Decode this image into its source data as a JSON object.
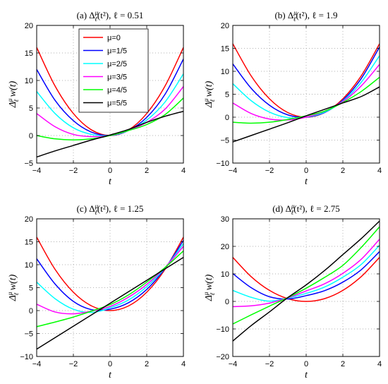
{
  "colors": {
    "mu0": "#ff0000",
    "mu1": "#0000ff",
    "mu2": "#00ffff",
    "mu3": "#ff00ff",
    "mu4": "#00ff00",
    "mu5": "#000000"
  },
  "legend": {
    "placement": "top-left",
    "entries": [
      "μ=0",
      "μ=1/5",
      "μ=2/5",
      "μ=3/5",
      "μ=4/5",
      "μ=5/5"
    ]
  },
  "chart_data": [
    {
      "type": "line",
      "title": "(a) Δ_ℓ^μ(t²), ℓ = 0.51",
      "xlabel": "t",
      "ylabel": "Δ_ℓ^μ w(t)",
      "xlim": [
        -4,
        4
      ],
      "ylim": [
        -5,
        20
      ],
      "xticks": [
        -4,
        -2,
        0,
        2,
        4
      ],
      "yticks": [
        -5,
        0,
        5,
        10,
        15,
        20
      ],
      "grid": true,
      "ell": 0.51,
      "x": [
        -4,
        -3,
        -2,
        -1,
        0,
        1,
        2,
        3,
        4
      ],
      "series": [
        {
          "name": "μ=0",
          "values": [
            16.0,
            9.0,
            4.0,
            1.0,
            0.0,
            1.0,
            4.0,
            9.0,
            16.0
          ]
        },
        {
          "name": "μ=1/5",
          "values": [
            12.0,
            6.4,
            2.7,
            0.6,
            0.0,
            0.9,
            3.3,
            7.5,
            13.9
          ]
        },
        {
          "name": "μ=2/5",
          "values": [
            8.0,
            4.0,
            1.4,
            0.2,
            0.0,
            0.9,
            2.8,
            6.1,
            11.2
          ]
        },
        {
          "name": "μ=3/5",
          "values": [
            4.0,
            1.6,
            0.2,
            -0.2,
            0.0,
            0.9,
            2.4,
            4.8,
            8.9
          ]
        },
        {
          "name": "μ=4/5",
          "values": [
            0.0,
            -0.6,
            -0.8,
            -0.6,
            0.0,
            0.9,
            2.0,
            3.8,
            6.8
          ]
        },
        {
          "name": "μ=5/5",
          "values": [
            -3.9,
            -2.8,
            -1.8,
            -0.8,
            0.1,
            1.1,
            2.4,
            3.5,
            4.4
          ]
        }
      ]
    },
    {
      "type": "line",
      "title": "(b) Δ_ℓ^μ(t²), ℓ = 1.9",
      "xlabel": "t",
      "ylabel": "Δ_ℓ^μ w(t)",
      "xlim": [
        -4,
        4
      ],
      "ylim": [
        -10,
        20
      ],
      "xticks": [
        -4,
        -2,
        0,
        2,
        4
      ],
      "yticks": [
        -10,
        -5,
        0,
        5,
        10,
        15,
        20
      ],
      "grid": true,
      "ell": 1.9,
      "x": [
        -4,
        -3,
        -2,
        -1,
        0,
        1,
        2,
        3,
        4
      ],
      "series": [
        {
          "name": "μ=0",
          "values": [
            16.0,
            9.0,
            4.0,
            1.0,
            0.0,
            1.0,
            4.0,
            9.0,
            16.0
          ]
        },
        {
          "name": "μ=1/5",
          "values": [
            11.6,
            6.3,
            2.6,
            0.5,
            0.0,
            1.0,
            3.7,
            8.4,
            15.3
          ]
        },
        {
          "name": "μ=2/5",
          "values": [
            7.3,
            3.6,
            1.1,
            -0.1,
            0.0,
            1.1,
            3.5,
            7.6,
            13.4
          ]
        },
        {
          "name": "μ=3/5",
          "values": [
            3.1,
            0.8,
            -0.4,
            -0.6,
            0.0,
            1.3,
            3.4,
            6.8,
            11.5
          ]
        },
        {
          "name": "μ=4/5",
          "values": [
            -1.1,
            -1.3,
            -1.1,
            -0.5,
            0.3,
            1.3,
            3.2,
            5.6,
            8.7
          ]
        },
        {
          "name": "μ=5/5",
          "values": [
            -5.4,
            -4.0,
            -2.6,
            -1.2,
            0.3,
            1.7,
            3.1,
            4.5,
            6.6
          ]
        }
      ]
    },
    {
      "type": "line",
      "title": "(c) Δ_ℓ^μ(t²), ℓ = 1.25",
      "xlabel": "t",
      "ylabel": "Δ_ℓ^μ w(t)",
      "xlim": [
        -4,
        4
      ],
      "ylim": [
        -10,
        20
      ],
      "xticks": [
        -4,
        -2,
        0,
        2,
        4
      ],
      "yticks": [
        -10,
        -5,
        0,
        5,
        10,
        15,
        20
      ],
      "grid": true,
      "ell": 1.25,
      "x": [
        -4,
        -3,
        -2,
        -1,
        0,
        1,
        2,
        3,
        4
      ],
      "series": [
        {
          "name": "μ=0",
          "values": [
            16.0,
            9.0,
            4.0,
            1.0,
            0.0,
            1.0,
            4.0,
            9.0,
            16.0
          ]
        },
        {
          "name": "μ=1/5",
          "values": [
            11.3,
            5.8,
            2.0,
            0.2,
            0.3,
            1.7,
            4.6,
            9.2,
            15.3
          ]
        },
        {
          "name": "μ=2/5",
          "values": [
            6.2,
            2.6,
            0.3,
            -0.4,
            0.6,
            2.3,
            5.2,
            9.3,
            14.6
          ]
        },
        {
          "name": "μ=3/5",
          "values": [
            1.4,
            -0.3,
            -0.7,
            -0.1,
            0.9,
            2.9,
            5.7,
            9.4,
            14.0
          ]
        },
        {
          "name": "μ=4/5",
          "values": [
            -3.5,
            -2.5,
            -1.4,
            -0.1,
            1.3,
            3.4,
            6.2,
            9.4,
            13.0
          ]
        },
        {
          "name": "μ=5/5",
          "values": [
            -8.4,
            -5.9,
            -3.4,
            -0.9,
            1.6,
            4.1,
            6.6,
            9.1,
            11.6
          ]
        }
      ]
    },
    {
      "type": "line",
      "title": "(d) Δ_ℓ^μ(t²), ℓ = 2.75",
      "xlabel": "t",
      "ylabel": "Δ_ℓ^μ w(t)",
      "xlim": [
        -4,
        4
      ],
      "ylim": [
        -20,
        30
      ],
      "xticks": [
        -4,
        -2,
        0,
        2,
        4
      ],
      "yticks": [
        -20,
        -10,
        0,
        10,
        20,
        30
      ],
      "grid": true,
      "ell": 2.75,
      "x": [
        -4,
        -3,
        -2,
        -1,
        0,
        1,
        2,
        3,
        4
      ],
      "series": [
        {
          "name": "μ=0",
          "values": [
            16.0,
            9.0,
            4.0,
            1.0,
            0.0,
            1.0,
            4.0,
            9.0,
            16.0
          ]
        },
        {
          "name": "μ=1/5",
          "values": [
            10.1,
            5.0,
            1.7,
            0.9,
            2.1,
            3.9,
            7.0,
            11.5,
            18.1
          ]
        },
        {
          "name": "μ=2/5",
          "values": [
            4.0,
            1.5,
            0.1,
            1.2,
            2.9,
            5.2,
            8.8,
            13.4,
            20.4
          ]
        },
        {
          "name": "μ=3/5",
          "values": [
            -1.9,
            -1.6,
            -0.6,
            1.3,
            3.8,
            6.4,
            10.2,
            15.3,
            22.6
          ]
        },
        {
          "name": "μ=4/5",
          "values": [
            -8.2,
            -4.9,
            -1.7,
            1.4,
            4.8,
            8.7,
            13.1,
            19.6,
            27.1
          ]
        },
        {
          "name": "μ=5/5",
          "values": [
            -14.4,
            -8.8,
            -3.8,
            1.4,
            6.0,
            11.2,
            17.0,
            22.8,
            29.2
          ]
        }
      ]
    }
  ]
}
